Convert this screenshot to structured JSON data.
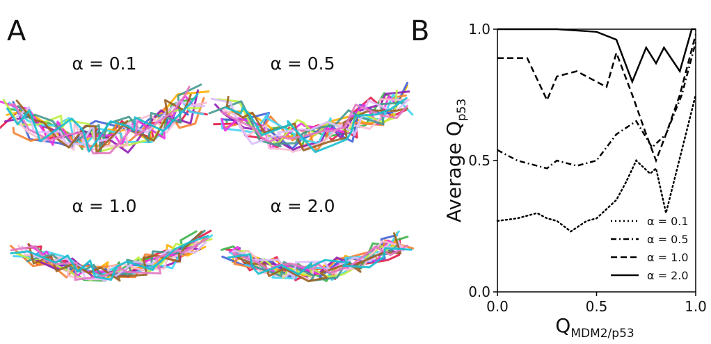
{
  "panels": {
    "a": {
      "label": "A",
      "structures": [
        "α = 0.1",
        "α = 0.5",
        "α = 1.0",
        "α = 2.0"
      ]
    },
    "b": {
      "label": "B"
    }
  },
  "chart_data": {
    "type": "line",
    "xlabel": "Q",
    "xlabel_sub": "MDM2/p53",
    "ylabel": "Average Q",
    "ylabel_sub": "p53",
    "xlim": [
      0,
      1
    ],
    "ylim": [
      0,
      1
    ],
    "xticks": [
      {
        "value": 0,
        "label": "0.0"
      },
      0.5,
      {
        "value": 1,
        "label": "1.0"
      }
    ],
    "yticks": [
      {
        "value": 0,
        "label": "0.0"
      },
      0.5,
      {
        "value": 1,
        "label": "1.0"
      }
    ],
    "legend": "lower right",
    "series": [
      {
        "name": "α = 0.1",
        "color": "#000000",
        "style": "dotted",
        "x": [
          0,
          0.1,
          0.2,
          0.25,
          0.3,
          0.37,
          0.45,
          0.5,
          0.6,
          0.65,
          0.7,
          0.77,
          0.8,
          0.85,
          0.9,
          0.95,
          1.0
        ],
        "values": [
          0.27,
          0.28,
          0.3,
          0.28,
          0.27,
          0.23,
          0.27,
          0.28,
          0.35,
          0.42,
          0.5,
          0.45,
          0.47,
          0.3,
          0.45,
          0.6,
          0.75
        ]
      },
      {
        "name": "α = 0.5",
        "color": "#000000",
        "style": "dashdot",
        "x": [
          0,
          0.1,
          0.2,
          0.25,
          0.3,
          0.4,
          0.5,
          0.6,
          0.7,
          0.78,
          0.85,
          0.93,
          1.0
        ],
        "values": [
          0.54,
          0.5,
          0.48,
          0.47,
          0.5,
          0.48,
          0.5,
          0.6,
          0.65,
          0.55,
          0.6,
          0.75,
          0.95
        ]
      },
      {
        "name": "α = 1.0",
        "color": "#000000",
        "style": "dashed",
        "x": [
          0,
          0.15,
          0.25,
          0.3,
          0.4,
          0.55,
          0.6,
          0.68,
          0.75,
          0.8,
          0.85,
          0.92,
          1.0
        ],
        "values": [
          0.89,
          0.89,
          0.73,
          0.82,
          0.84,
          0.78,
          0.91,
          0.75,
          0.6,
          0.5,
          0.6,
          0.75,
          0.98
        ]
      },
      {
        "name": "α = 2.0",
        "color": "#000000",
        "style": "solid",
        "x": [
          0,
          0.3,
          0.5,
          0.6,
          0.64,
          0.68,
          0.75,
          0.8,
          0.84,
          0.92,
          0.98,
          1.0
        ],
        "values": [
          1.0,
          1.0,
          0.99,
          0.96,
          0.88,
          0.8,
          0.93,
          0.87,
          0.93,
          0.84,
          1.0,
          1.0
        ]
      }
    ]
  }
}
